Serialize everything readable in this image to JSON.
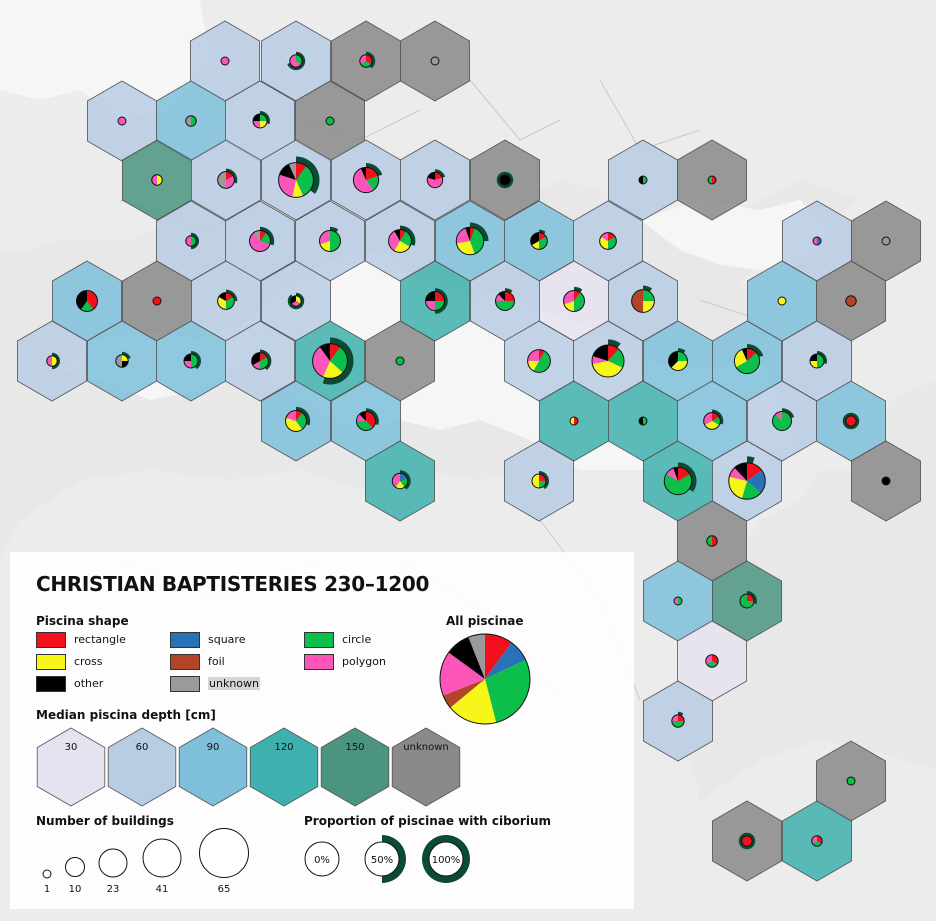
{
  "title": "CHRISTIAN BAPTISTERIES 230–1200",
  "colors": {
    "rectangle": "#f2101d",
    "square": "#2a72b8",
    "circle": "#0bbf4a",
    "cross": "#f6f619",
    "foil": "#b2442a",
    "polygon": "#fb55ba",
    "other": "#000000",
    "unknown": "#9a9a9a",
    "ciborium": "#0b4a35"
  },
  "legend": {
    "piscina_shape": {
      "heading": "Piscina shape",
      "items": [
        {
          "key": "rectangle",
          "label": "rectangle",
          "color": "#f2101d"
        },
        {
          "key": "cross",
          "label": "cross",
          "color": "#f6f619"
        },
        {
          "key": "other",
          "label": "other",
          "color": "#000000"
        },
        {
          "key": "square",
          "label": "square",
          "color": "#2a72b8"
        },
        {
          "key": "foil",
          "label": "foil",
          "color": "#b2442a"
        },
        {
          "key": "unknown",
          "label": "unknown",
          "color": "#9a9a9a"
        },
        {
          "key": "circle",
          "label": "circle",
          "color": "#0bbf4a"
        },
        {
          "key": "polygon",
          "label": "polygon",
          "color": "#fb55ba"
        }
      ]
    },
    "all_piscinae": {
      "heading": "All piscinae",
      "slices": [
        {
          "key": "rectangle",
          "value": 10
        },
        {
          "key": "square",
          "value": 8
        },
        {
          "key": "circle",
          "value": 28
        },
        {
          "key": "cross",
          "value": 18
        },
        {
          "key": "foil",
          "value": 5
        },
        {
          "key": "polygon",
          "value": 16
        },
        {
          "key": "other",
          "value": 9
        },
        {
          "key": "unknown",
          "value": 6
        }
      ]
    },
    "depth": {
      "heading": "Median piscina depth [cm]",
      "classes": [
        {
          "label": "30",
          "color": "#e6e3f0"
        },
        {
          "label": "60",
          "color": "#b8cde4"
        },
        {
          "label": "90",
          "color": "#7ebfda"
        },
        {
          "label": "120",
          "color": "#3eb0ad"
        },
        {
          "label": "150",
          "color": "#4b9480"
        },
        {
          "label": "unknown",
          "color": "#8a8a8a"
        }
      ]
    },
    "buildings": {
      "heading": "Number of buildings",
      "sizes": [
        {
          "label": "1",
          "value": 1
        },
        {
          "label": "10",
          "value": 10
        },
        {
          "label": "23",
          "value": 23
        },
        {
          "label": "41",
          "value": 41
        },
        {
          "label": "65",
          "value": 65
        }
      ]
    },
    "ciborium": {
      "heading": "Proportion of piscinae with ciborium",
      "levels": [
        {
          "label": "0%",
          "value": 0
        },
        {
          "label": "50%",
          "value": 0.5
        },
        {
          "label": "100%",
          "value": 1
        }
      ]
    }
  },
  "map": {
    "cells": [
      {
        "id": "c01",
        "d": "60",
        "n": 1,
        "c": 0,
        "s": {
          "polygon": 1
        }
      },
      {
        "id": "c02",
        "d": "60",
        "n": 3,
        "c": 0.7,
        "s": {
          "polygon": 2,
          "circle": 1
        }
      },
      {
        "id": "c03",
        "d": "unknown",
        "n": 3,
        "c": 0.4,
        "s": {
          "polygon": 1,
          "circle": 1,
          "rectangle": 1
        }
      },
      {
        "id": "c04",
        "d": "unknown",
        "n": 1,
        "c": 0,
        "s": {
          "unknown": 1
        }
      },
      {
        "id": "c05",
        "d": "60",
        "n": 1,
        "c": 0,
        "s": {
          "polygon": 1
        }
      },
      {
        "id": "c06",
        "d": "90",
        "n": 2,
        "c": 0,
        "s": {
          "unknown": 1,
          "circle": 1
        }
      },
      {
        "id": "c07",
        "d": "60",
        "n": 4,
        "c": 0.3,
        "s": {
          "polygon": 1,
          "cross": 1,
          "circle": 1,
          "other": 1
        }
      },
      {
        "id": "c08",
        "d": "unknown",
        "n": 1,
        "c": 0,
        "s": {
          "circle": 1
        }
      },
      {
        "id": "c09",
        "d": "150",
        "n": 2,
        "c": 0,
        "s": {
          "polygon": 1,
          "cross": 1
        }
      },
      {
        "id": "c10",
        "d": "60",
        "n": 6,
        "c": 0.3,
        "s": {
          "unknown": 3,
          "rectangle": 1,
          "polygon": 2
        }
      },
      {
        "id": "c11",
        "d": "60",
        "n": 30,
        "c": 0.35,
        "s": {
          "circle": 10,
          "polygon": 8,
          "cross": 3,
          "other": 4,
          "rectangle": 3,
          "unknown": 2
        }
      },
      {
        "id": "c12",
        "d": "60",
        "n": 15,
        "c": 0.2,
        "s": {
          "polygon": 8,
          "rectangle": 3,
          "circle": 3,
          "other": 1
        }
      },
      {
        "id": "c13",
        "d": "60",
        "n": 5,
        "c": 0.2,
        "s": {
          "polygon": 3,
          "rectangle": 1,
          "other": 1
        }
      },
      {
        "id": "c14",
        "d": "unknown",
        "n": 2,
        "c": 1,
        "s": {
          "other": 2
        }
      },
      {
        "id": "c15",
        "d": "60",
        "n": 1,
        "c": 0,
        "s": {
          "other": 1,
          "circle": 1
        }
      },
      {
        "id": "c16",
        "d": "unknown",
        "n": 1,
        "c": 0,
        "s": {
          "circle": 1,
          "rectangle": 1
        }
      },
      {
        "id": "c17",
        "d": "60",
        "n": 2,
        "c": 0.5,
        "s": {
          "polygon": 1,
          "circle": 1
        }
      },
      {
        "id": "c18",
        "d": "60",
        "n": 10,
        "c": 0.3,
        "s": {
          "polygon": 6,
          "circle": 2,
          "unknown": 1,
          "rectangle": 1
        }
      },
      {
        "id": "c19",
        "d": "60",
        "n": 10,
        "c": 0.1,
        "s": {
          "circle": 5,
          "polygon": 3,
          "cross": 2
        }
      },
      {
        "id": "c20",
        "d": "60",
        "n": 12,
        "c": 0.3,
        "s": {
          "polygon": 4,
          "cross": 3,
          "circle": 3,
          "rectangle": 1,
          "other": 1
        }
      },
      {
        "id": "c21",
        "d": "90",
        "n": 18,
        "c": 0.25,
        "s": {
          "circle": 7,
          "cross": 5,
          "polygon": 4,
          "rectangle": 1,
          "other": 1
        }
      },
      {
        "id": "c22",
        "d": "90",
        "n": 6,
        "c": 0.1,
        "s": {
          "circle": 2,
          "other": 2,
          "rectangle": 1,
          "cross": 1
        }
      },
      {
        "id": "c23",
        "d": "60",
        "n": 6,
        "c": 0,
        "s": {
          "circle": 2,
          "cross": 2,
          "polygon": 1,
          "rectangle": 1
        }
      },
      {
        "id": "c24",
        "d": "60",
        "n": 1,
        "c": 0,
        "s": {
          "polygon": 1,
          "square": 1
        }
      },
      {
        "id": "c25",
        "d": "unknown",
        "n": 1,
        "c": 0,
        "s": {
          "unknown": 1
        }
      },
      {
        "id": "c26",
        "d": "90",
        "n": 10,
        "c": 0,
        "s": {
          "other": 4,
          "rectangle": 4,
          "circle": 2
        }
      },
      {
        "id": "c27",
        "d": "unknown",
        "n": 1,
        "c": 0,
        "s": {
          "rectangle": 1
        }
      },
      {
        "id": "c28",
        "d": "60",
        "n": 6,
        "c": 0.25,
        "s": {
          "cross": 2,
          "circle": 2,
          "other": 1,
          "rectangle": 1
        }
      },
      {
        "id": "c29",
        "d": "60",
        "n": 2,
        "c": 0.9,
        "s": {
          "polygon": 1,
          "other": 1,
          "cross": 1
        }
      },
      {
        "id": "c30",
        "d": "120",
        "n": 8,
        "c": 0.5,
        "s": {
          "rectangle": 2,
          "other": 2,
          "circle": 2,
          "polygon": 2
        }
      },
      {
        "id": "c31",
        "d": "60",
        "n": 8,
        "c": 0.1,
        "s": {
          "circle": 4,
          "rectangle": 2,
          "polygon": 1,
          "other": 1
        }
      },
      {
        "id": "c32",
        "d": "30",
        "n": 10,
        "c": 0.1,
        "s": {
          "circle": 4,
          "polygon": 3,
          "cross": 2,
          "rectangle": 1
        }
      },
      {
        "id": "c33",
        "d": "60",
        "n": 12,
        "c": 0.1,
        "s": {
          "foil": 6,
          "cross": 3,
          "circle": 3
        }
      },
      {
        "id": "c34",
        "d": "90",
        "n": 1,
        "c": 0,
        "s": {
          "cross": 1
        }
      },
      {
        "id": "c35",
        "d": "unknown",
        "n": 2,
        "c": 0,
        "s": {
          "foil": 2
        }
      },
      {
        "id": "c36",
        "d": "60",
        "n": 2,
        "c": 0.5,
        "s": {
          "polygon": 1,
          "cross": 1
        }
      },
      {
        "id": "c37",
        "d": "90",
        "n": 3,
        "c": 0.2,
        "s": {
          "unknown": 2,
          "cross": 1,
          "other": 1
        }
      },
      {
        "id": "c38",
        "d": "90",
        "n": 4,
        "c": 0.4,
        "s": {
          "circle": 2,
          "polygon": 1,
          "other": 1
        }
      },
      {
        "id": "c39",
        "d": "60",
        "n": 6,
        "c": 0.4,
        "s": {
          "other": 2,
          "circle": 2,
          "rectangle": 1,
          "polygon": 1
        }
      },
      {
        "id": "c40",
        "d": "120",
        "n": 30,
        "c": 0.55,
        "s": {
          "polygon": 10,
          "circle": 8,
          "cross": 6,
          "rectangle": 3,
          "other": 3
        }
      },
      {
        "id": "c41",
        "d": "unknown",
        "n": 1,
        "c": 0,
        "s": {
          "circle": 1
        }
      },
      {
        "id": "c42",
        "d": "60",
        "n": 12,
        "c": 0,
        "s": {
          "circle": 6,
          "polygon": 3,
          "cross": 2,
          "rectangle": 1
        }
      },
      {
        "id": "c43",
        "d": "60",
        "n": 25,
        "c": 0.1,
        "s": {
          "cross": 10,
          "circle": 5,
          "other": 5,
          "rectangle": 3,
          "polygon": 2
        }
      },
      {
        "id": "c44",
        "d": "90",
        "n": 8,
        "c": 0.1,
        "s": {
          "other": 3,
          "cross": 3,
          "circle": 2
        }
      },
      {
        "id": "c45",
        "d": "90",
        "n": 15,
        "c": 0.2,
        "s": {
          "circle": 8,
          "cross": 4,
          "rectangle": 2,
          "other": 1
        }
      },
      {
        "id": "c46",
        "d": "60",
        "n": 4,
        "c": 0.3,
        "s": {
          "circle": 2,
          "cross": 1,
          "other": 1
        }
      },
      {
        "id": "c47",
        "d": "90",
        "n": 10,
        "c": 0.3,
        "s": {
          "cross": 4,
          "circle": 3,
          "polygon": 2,
          "rectangle": 1
        }
      },
      {
        "id": "c48",
        "d": "90",
        "n": 8,
        "c": 0.3,
        "s": {
          "rectangle": 3,
          "circle": 3,
          "polygon": 1,
          "other": 1
        }
      },
      {
        "id": "c49",
        "d": "120",
        "n": 1,
        "c": 0,
        "s": {
          "cross": 1,
          "rectangle": 1
        }
      },
      {
        "id": "c50",
        "d": "120",
        "n": 1,
        "c": 0,
        "s": {
          "circle": 1,
          "other": 1
        }
      },
      {
        "id": "c51",
        "d": "90",
        "n": 6,
        "c": 0.3,
        "s": {
          "polygon": 2,
          "cross": 2,
          "circle": 1,
          "rectangle": 1
        }
      },
      {
        "id": "c52",
        "d": "60",
        "n": 8,
        "c": 0.2,
        "s": {
          "circle": 7,
          "polygon": 1
        }
      },
      {
        "id": "c53",
        "d": "90",
        "n": 2,
        "c": 1,
        "s": {
          "rectangle": 1
        }
      },
      {
        "id": "c54",
        "d": "120",
        "n": 5,
        "c": 0.4,
        "s": {
          "polygon": 2,
          "circle": 1,
          "square": 1,
          "cross": 1
        }
      },
      {
        "id": "c55",
        "d": "60",
        "n": 4,
        "c": 0.4,
        "s": {
          "cross": 2,
          "rectangle": 1,
          "circle": 1
        }
      },
      {
        "id": "c56",
        "d": "120",
        "n": 18,
        "c": 0.35,
        "s": {
          "circle": 12,
          "rectangle": 3,
          "other": 1,
          "polygon": 2
        }
      },
      {
        "id": "c57",
        "d": "60",
        "n": 33,
        "c": 0.05,
        "s": {
          "rectangle": 5,
          "square": 7,
          "circle": 6,
          "cross": 8,
          "polygon": 3,
          "other": 4
        }
      },
      {
        "id": "c58",
        "d": "unknown",
        "n": 1,
        "c": 0,
        "s": {
          "other": 1
        }
      },
      {
        "id": "c59",
        "d": "unknown",
        "n": 2,
        "c": 0,
        "s": {
          "circle": 1,
          "rectangle": 1
        }
      },
      {
        "id": "c60",
        "d": "90",
        "n": 1,
        "c": 0,
        "s": {
          "polygon": 1,
          "circle": 1
        }
      },
      {
        "id": "c61",
        "d": "150",
        "n": 4,
        "c": 0.3,
        "s": {
          "circle": 3,
          "rectangle": 1
        }
      },
      {
        "id": "c62",
        "d": "30",
        "n": 3,
        "c": 0,
        "s": {
          "polygon": 1,
          "circle": 1,
          "rectangle": 1
        }
      },
      {
        "id": "c63",
        "d": "60",
        "n": 3,
        "c": 0.1,
        "s": {
          "circle": 2,
          "rectangle": 1,
          "polygon": 1
        }
      },
      {
        "id": "c64",
        "d": "unknown",
        "n": 1,
        "c": 0,
        "s": {
          "circle": 1
        }
      },
      {
        "id": "c65",
        "d": "unknown",
        "n": 2,
        "c": 1,
        "s": {
          "rectangle": 1
        }
      },
      {
        "id": "c66",
        "d": "120",
        "n": 2,
        "c": 0,
        "s": {
          "circle": 1,
          "rectangle": 1,
          "polygon": 1
        }
      }
    ]
  }
}
